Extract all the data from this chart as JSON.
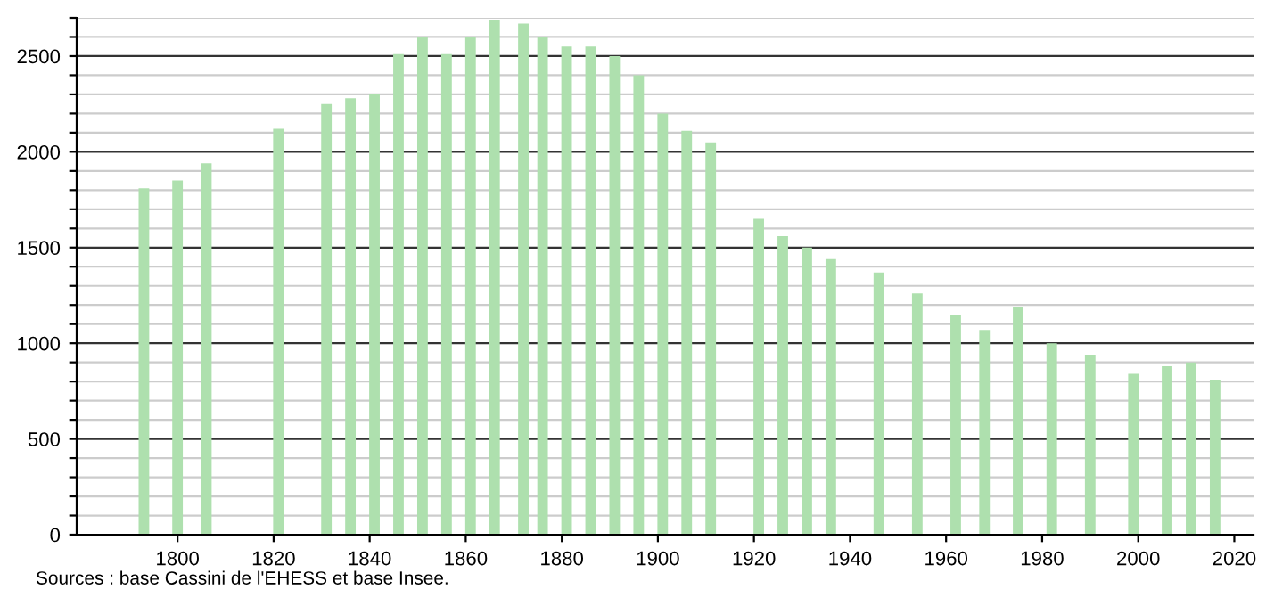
{
  "chart_data": {
    "type": "bar",
    "x": [
      1793,
      1800,
      1806,
      1821,
      1831,
      1836,
      1841,
      1846,
      1851,
      1856,
      1861,
      1866,
      1872,
      1876,
      1881,
      1886,
      1891,
      1896,
      1901,
      1906,
      1911,
      1921,
      1926,
      1931,
      1936,
      1946,
      1954,
      1962,
      1968,
      1975,
      1982,
      1990,
      1999,
      2006,
      2011,
      2016
    ],
    "values": [
      1810,
      1850,
      1940,
      2120,
      2250,
      2280,
      2300,
      2510,
      2600,
      2510,
      2600,
      2690,
      2670,
      2600,
      2550,
      2550,
      2500,
      2400,
      2200,
      2110,
      2050,
      1650,
      1560,
      1500,
      1440,
      1370,
      1260,
      1150,
      1070,
      1190,
      1000,
      940,
      840,
      880,
      900,
      810
    ],
    "color": "#aee0ae",
    "xlim": [
      1779,
      2024
    ],
    "xticks": [
      1800,
      1820,
      1840,
      1860,
      1880,
      1900,
      1920,
      1940,
      1960,
      1980,
      2000,
      2020
    ],
    "ylim": [
      0,
      2700
    ],
    "yticks": [
      0,
      {
        "value": 100,
        "label": null
      },
      {
        "value": 200,
        "label": null
      },
      {
        "value": 300,
        "label": null
      },
      {
        "value": 400,
        "label": null
      },
      500,
      {
        "value": 600,
        "label": null
      },
      {
        "value": 700,
        "label": null
      },
      {
        "value": 800,
        "label": null
      },
      {
        "value": 900,
        "label": null
      },
      1000,
      {
        "value": 1100,
        "label": null
      },
      {
        "value": 1200,
        "label": null
      },
      {
        "value": 1300,
        "label": null
      },
      {
        "value": 1400,
        "label": null
      },
      1500,
      {
        "value": 1600,
        "label": null
      },
      {
        "value": 1700,
        "label": null
      },
      {
        "value": 1800,
        "label": null
      },
      {
        "value": 1900,
        "label": null
      },
      2000,
      {
        "value": 2100,
        "label": null
      },
      {
        "value": 2200,
        "label": null
      },
      {
        "value": 2300,
        "label": null
      },
      {
        "value": 2400,
        "label": null
      },
      2500,
      {
        "value": 2600,
        "label": null
      },
      {
        "value": 2700,
        "label": null
      }
    ],
    "grid": "y",
    "annotations": [
      "Sources : base Cassini de l'EHESS et base Insee."
    ]
  }
}
